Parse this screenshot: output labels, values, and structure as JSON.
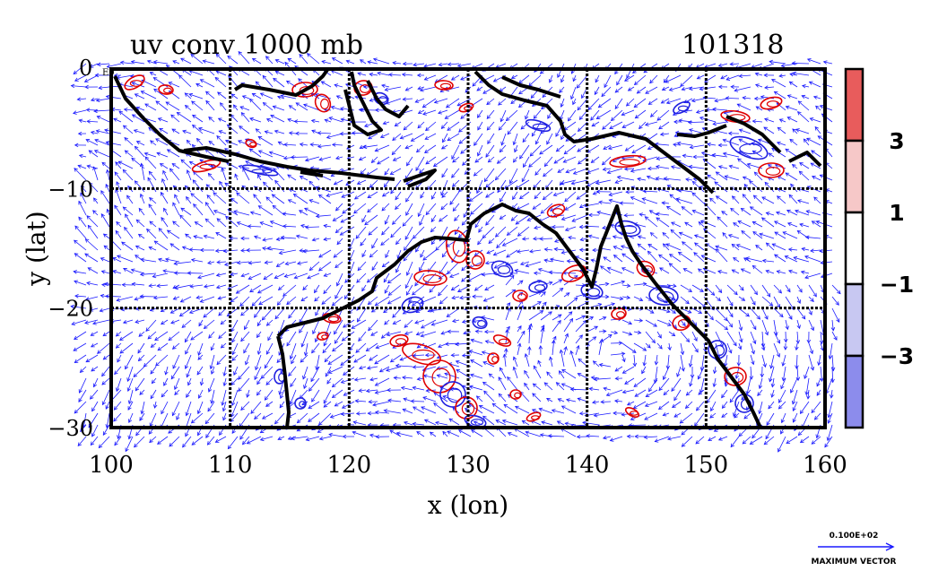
{
  "chart_data": {
    "type": "vector-field with filled contours",
    "title": "uv conv 1000 mb",
    "date_label": "101318",
    "xlabel": "x (lon)",
    "ylabel": "y (lat)",
    "xlim": [
      100,
      160
    ],
    "ylim": [
      -30,
      0
    ],
    "x_ticks": [
      100,
      110,
      120,
      130,
      140,
      150,
      160
    ],
    "y_ticks": [
      {
        "value": 0,
        "label": "0"
      },
      {
        "value": -10,
        "label": "−10"
      },
      {
        "value": -20,
        "label": "−20"
      },
      {
        "value": -30,
        "label": "−30"
      }
    ],
    "top_corner_label": "E0",
    "grid": true,
    "grid_lon": [
      110,
      120,
      130,
      140,
      150
    ],
    "grid_lat": [
      -10,
      -20
    ],
    "colorbar": {
      "levels": [
        {
          "label": "3",
          "color": "#e85c5c"
        },
        {
          "label": "1",
          "color": "#f6c8c8"
        },
        {
          "label": "−1",
          "color": "#ffffff"
        },
        {
          "label": "−3",
          "color": "#c8c8f2"
        },
        {
          "label": "",
          "color": "#8c8cec"
        }
      ],
      "tick_labels": [
        "3",
        "1",
        "−1",
        "−3"
      ]
    },
    "vector_legend": {
      "value_label": "0.100E+02",
      "caption": "MAXIMUM VECTOR"
    },
    "colors": {
      "vectors": "#1a1aff",
      "positive_contour": "#e00000",
      "negative_contour": "#2020e0",
      "coast": "#000000"
    }
  }
}
